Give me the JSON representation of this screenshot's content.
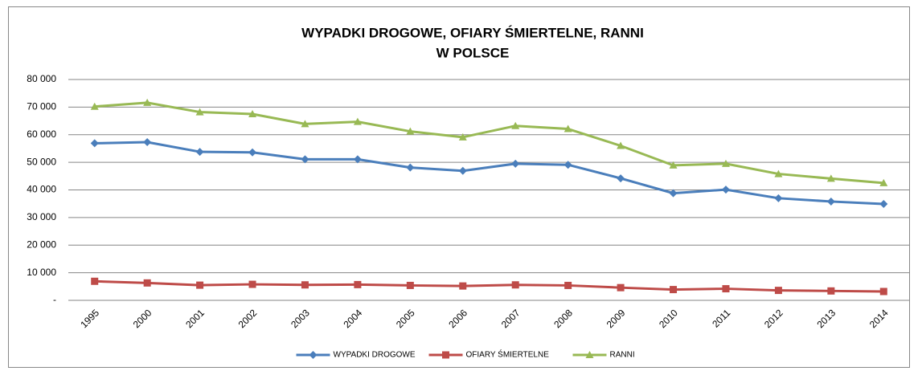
{
  "chart_data": {
    "type": "line",
    "title": [
      "WYPADKI DROGOWE, OFIARY ŚMIERTELNE, RANNI",
      "W POLSCE"
    ],
    "categories": [
      "1995",
      "2000",
      "2001",
      "2002",
      "2003",
      "2004",
      "2005",
      "2006",
      "2007",
      "2008",
      "2009",
      "2010",
      "2011",
      "2012",
      "2013",
      "2014"
    ],
    "series": [
      {
        "name": "WYPADKI DROGOWE",
        "color": "#4a7ebb",
        "marker": "diamond",
        "values": [
          56900,
          57300,
          53800,
          53600,
          51100,
          51100,
          48100,
          46900,
          49500,
          49100,
          44200,
          38800,
          40100,
          37000,
          35800,
          34900
        ]
      },
      {
        "name": "OFIARY ŚMIERTELNE",
        "color": "#be4b48",
        "marker": "square",
        "values": [
          6900,
          6300,
          5500,
          5800,
          5600,
          5700,
          5400,
          5200,
          5600,
          5400,
          4600,
          3900,
          4200,
          3600,
          3400,
          3200
        ]
      },
      {
        "name": "RANNI",
        "color": "#98b954",
        "marker": "triangle",
        "values": [
          70200,
          71600,
          68200,
          67500,
          63900,
          64700,
          61200,
          59100,
          63200,
          62100,
          56000,
          48900,
          49500,
          45800,
          44100,
          42500
        ]
      }
    ],
    "ylim": [
      0,
      80000
    ],
    "yticks": [
      {
        "value": 0,
        "label": "-"
      },
      {
        "value": 10000,
        "label": "10 000"
      },
      {
        "value": 20000,
        "label": "20 000"
      },
      {
        "value": 30000,
        "label": "30 000"
      },
      {
        "value": 40000,
        "label": "40 000"
      },
      {
        "value": 50000,
        "label": "50 000"
      },
      {
        "value": 60000,
        "label": "60 000"
      },
      {
        "value": 70000,
        "label": "70 000"
      },
      {
        "value": 80000,
        "label": "80 000"
      }
    ],
    "grid": true,
    "legend": "bottom"
  }
}
